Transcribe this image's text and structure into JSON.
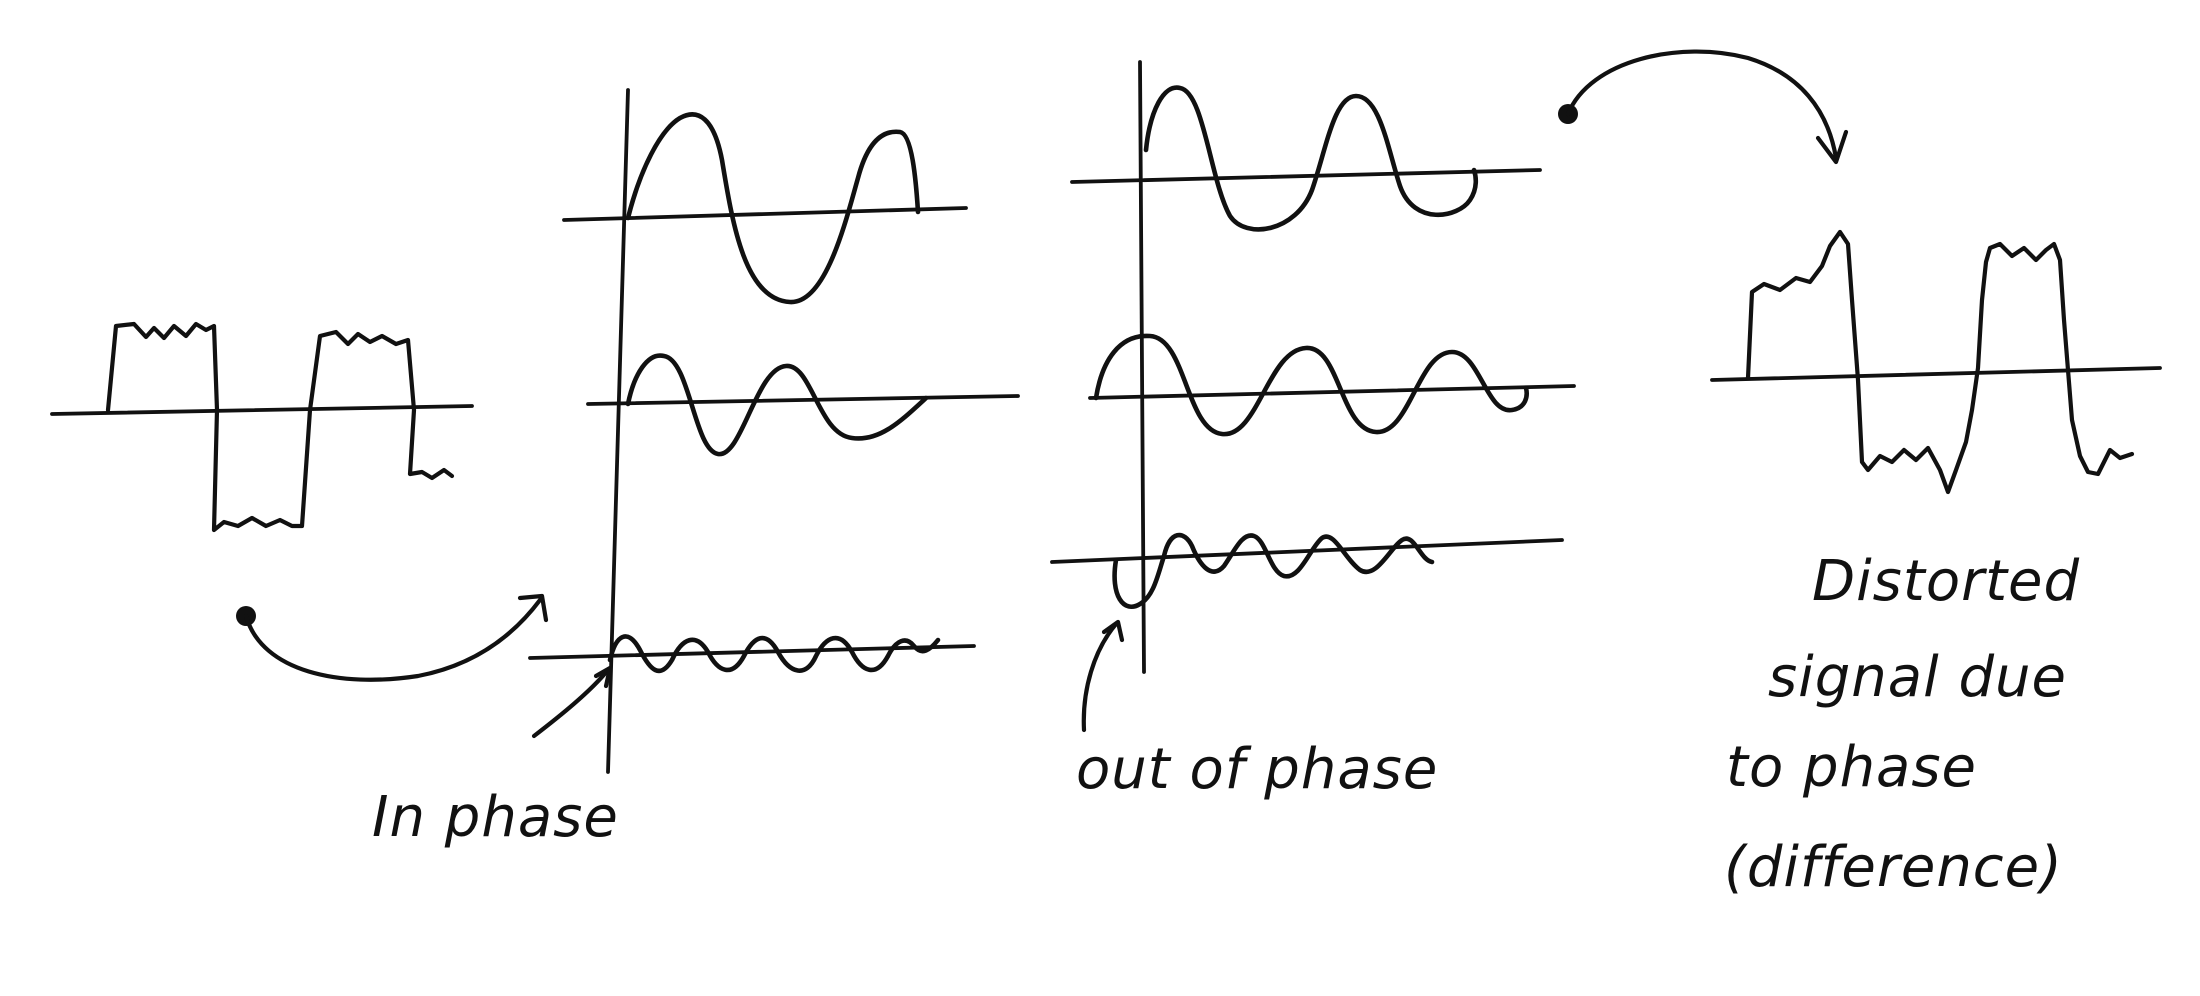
{
  "labels": {
    "in_phase": "In phase",
    "out_of_phase": "out of phase",
    "distorted_line1": "Distorted",
    "distorted_line2": "signal due",
    "distorted_line3": "to phase",
    "distorted_line4": "(difference)"
  },
  "colors": {
    "ink": "#111111",
    "background": "#ffffff"
  }
}
